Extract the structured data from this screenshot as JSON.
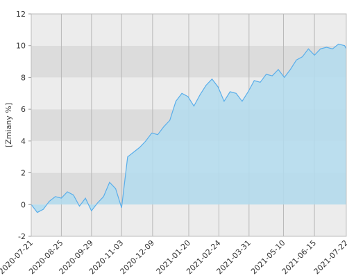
{
  "chart_data": {
    "type": "area",
    "y_label": "[Zmiany %]",
    "x": [
      "2020-07-21",
      "2020-07-28",
      "2020-08-04",
      "2020-08-11",
      "2020-08-18",
      "2020-08-25",
      "2020-09-01",
      "2020-09-08",
      "2020-09-15",
      "2020-09-22",
      "2020-09-29",
      "2020-10-06",
      "2020-10-13",
      "2020-10-20",
      "2020-10-27",
      "2020-11-03",
      "2020-11-10",
      "2020-11-17",
      "2020-11-24",
      "2020-12-01",
      "2020-12-08",
      "2020-12-15",
      "2020-12-22",
      "2020-12-29",
      "2021-01-05",
      "2021-01-12",
      "2021-01-19",
      "2021-01-26",
      "2021-02-02",
      "2021-02-09",
      "2021-02-16",
      "2021-02-23",
      "2021-03-02",
      "2021-03-09",
      "2021-03-16",
      "2021-03-23",
      "2021-03-30",
      "2021-04-06",
      "2021-04-13",
      "2021-04-20",
      "2021-04-27",
      "2021-05-04",
      "2021-05-11",
      "2021-05-18",
      "2021-05-25",
      "2021-06-01",
      "2021-06-08",
      "2021-06-15",
      "2021-06-22",
      "2021-06-29",
      "2021-07-06",
      "2021-07-13",
      "2021-07-20",
      "2021-07-22"
    ],
    "values": [
      0,
      -0.5,
      -0.3,
      0.2,
      0.5,
      0.4,
      0.8,
      0.6,
      -0.1,
      0.4,
      -0.4,
      0.1,
      0.5,
      1.4,
      1.0,
      -0.2,
      3.0,
      3.3,
      3.6,
      4.0,
      4.5,
      4.4,
      4.9,
      5.3,
      6.5,
      7.0,
      6.8,
      6.2,
      6.9,
      7.5,
      7.9,
      7.4,
      6.5,
      7.1,
      7.0,
      6.5,
      7.1,
      7.8,
      7.7,
      8.2,
      8.1,
      8.5,
      8.0,
      8.5,
      9.1,
      9.3,
      9.8,
      9.4,
      9.8,
      9.9,
      9.8,
      10.1,
      10.0,
      9.8
    ],
    "line_color": "#5aaeea",
    "fill_color": "#b3dcef",
    "xlim": [
      "2020-07-21",
      "2021-07-22"
    ],
    "xticks": [
      "2020-07-21",
      "2020-08-25",
      "2020-09-29",
      "2020-11-03",
      "2020-12-09",
      "2021-01-20",
      "2021-02-24",
      "2021-03-31",
      "2021-05-10",
      "2021-06-15",
      "2021-07-22"
    ],
    "ylim": [
      -2,
      12
    ],
    "yticks": [
      -2,
      0,
      2,
      4,
      6,
      8,
      10,
      12
    ],
    "grid": true
  }
}
